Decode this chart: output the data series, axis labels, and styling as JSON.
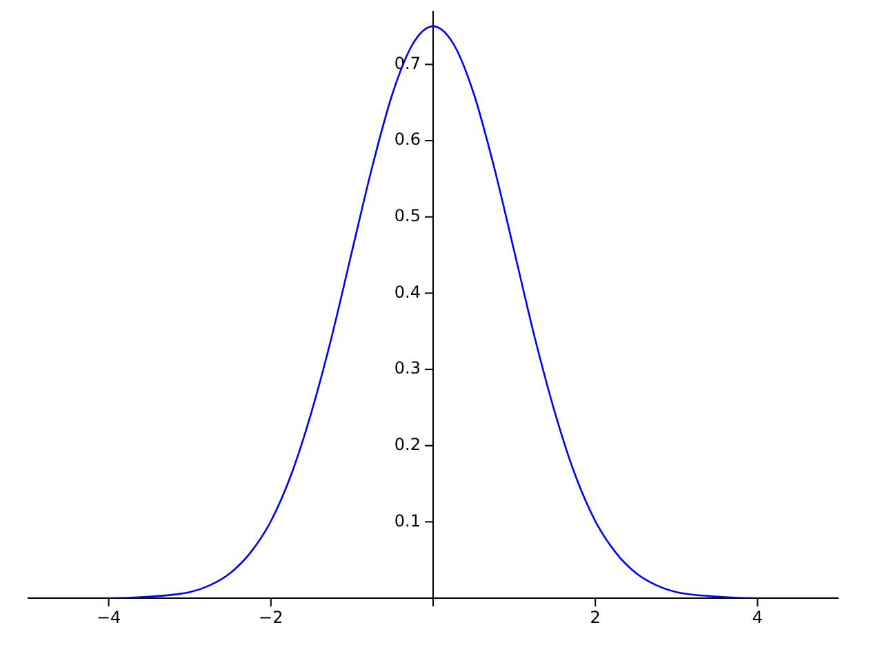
{
  "chart_data": {
    "type": "line",
    "x": [
      -5,
      -4,
      -3.5,
      -3,
      -2.75,
      -2.5,
      -2.25,
      -2,
      -1.75,
      -1.5,
      -1.25,
      -1,
      -0.75,
      -0.5,
      -0.25,
      0,
      0.25,
      0.5,
      0.75,
      1,
      1.25,
      1.5,
      1.75,
      2,
      2.25,
      2.5,
      2.75,
      3,
      3.5,
      4,
      5
    ],
    "series": [
      {
        "color": "#0000ff",
        "values": [
          0,
          0,
          0.002,
          0.008,
          0.017,
          0.033,
          0.06,
          0.101,
          0.162,
          0.244,
          0.343,
          0.455,
          0.566,
          0.662,
          0.727,
          0.75,
          0.727,
          0.662,
          0.566,
          0.455,
          0.343,
          0.244,
          0.162,
          0.101,
          0.06,
          0.033,
          0.017,
          0.008,
          0.002,
          0,
          0
        ]
      }
    ],
    "xlim": [
      -5,
      5
    ],
    "ylim": [
      0,
      0.77
    ],
    "xticks": [
      -4,
      -2,
      {
        "value": 0,
        "label": null
      },
      2,
      4
    ],
    "yticks": [
      0.1,
      0.2,
      0.3,
      0.4,
      0.5,
      0.6,
      0.7
    ],
    "grid": false,
    "legend": false,
    "marker": "none",
    "line_style": "solid"
  }
}
